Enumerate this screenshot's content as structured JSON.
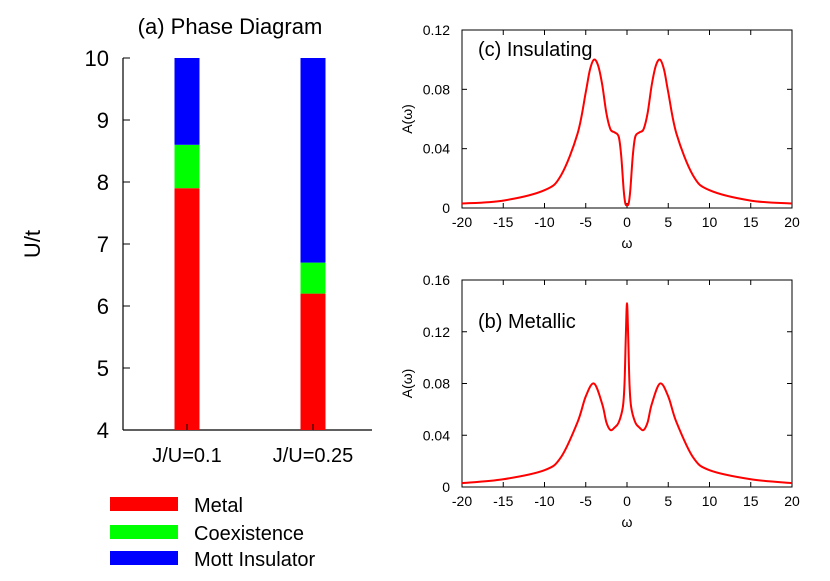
{
  "chart_data": [
    {
      "type": "bar",
      "title": "(a) Phase Diagram",
      "ylabel": "U/t",
      "ylim": [
        4,
        10
      ],
      "yticks": [
        "4",
        "5",
        "6",
        "7",
        "8",
        "9",
        "10"
      ],
      "categories": [
        "J/U=0.1",
        "J/U=0.25"
      ],
      "stacked_ranges": [
        {
          "name": "Metal",
          "color": "#ff0000",
          "ranges": [
            [
              4,
              7.9
            ],
            [
              4,
              6.2
            ]
          ]
        },
        {
          "name": "Coexistence",
          "color": "#00ff00",
          "ranges": [
            [
              7.9,
              8.6
            ],
            [
              6.2,
              6.7
            ]
          ]
        },
        {
          "name": "Mott Insulator",
          "color": "#0000ff",
          "ranges": [
            [
              8.6,
              10
            ],
            [
              6.7,
              10
            ]
          ]
        }
      ],
      "legend": {
        "placement": "bottom-left",
        "entries": [
          "Metal",
          "Coexistence",
          "Mott Insulator"
        ]
      }
    },
    {
      "type": "line",
      "title": "(c) Insulating",
      "xlabel": "ω",
      "ylabel": "A(ω)",
      "xlim": [
        -20,
        20
      ],
      "ylim": [
        0,
        0.12
      ],
      "xticks": [
        "-20",
        "-15",
        "-10",
        "-5",
        "0",
        "5",
        "10",
        "15",
        "20"
      ],
      "yticks": [
        "0",
        "0.04",
        "0.08",
        "0.12"
      ],
      "color": "#ff0000",
      "x": [
        -20,
        -15,
        -10,
        -8,
        -6,
        -5,
        -4.5,
        -4,
        -3.5,
        -3,
        -2.5,
        -2,
        -1.5,
        -1,
        -0.7,
        -0.4,
        -0.2,
        0,
        0.2,
        0.4,
        0.7,
        1,
        1.5,
        2,
        2.5,
        3,
        3.5,
        4,
        4.5,
        5,
        6,
        8,
        10,
        15,
        20
      ],
      "y": [
        0.003,
        0.005,
        0.012,
        0.022,
        0.05,
        0.078,
        0.093,
        0.1,
        0.096,
        0.083,
        0.064,
        0.053,
        0.051,
        0.048,
        0.035,
        0.012,
        0.003,
        0.002,
        0.003,
        0.012,
        0.035,
        0.048,
        0.051,
        0.053,
        0.064,
        0.083,
        0.096,
        0.1,
        0.093,
        0.078,
        0.05,
        0.022,
        0.012,
        0.005,
        0.003
      ]
    },
    {
      "type": "line",
      "title": "(b) Metallic",
      "xlabel": "ω",
      "ylabel": "A(ω)",
      "xlim": [
        -20,
        20
      ],
      "ylim": [
        0,
        0.16
      ],
      "xticks": [
        "-20",
        "-15",
        "-10",
        "-5",
        "0",
        "5",
        "10",
        "15",
        "20"
      ],
      "yticks": [
        "0",
        "0.04",
        "0.08",
        "0.12",
        "0.16"
      ],
      "color": "#ff0000",
      "x": [
        -20,
        -15,
        -10,
        -8,
        -6,
        -5,
        -4,
        -3,
        -2.5,
        -2,
        -1.5,
        -1,
        -0.5,
        -0.3,
        -0.15,
        0,
        0.15,
        0.3,
        0.5,
        1,
        1.5,
        2,
        2.5,
        3,
        4,
        5,
        6,
        8,
        10,
        15,
        20
      ],
      "y": [
        0.003,
        0.006,
        0.013,
        0.023,
        0.05,
        0.07,
        0.08,
        0.064,
        0.05,
        0.044,
        0.046,
        0.05,
        0.062,
        0.08,
        0.115,
        0.142,
        0.115,
        0.08,
        0.062,
        0.05,
        0.046,
        0.044,
        0.05,
        0.064,
        0.08,
        0.07,
        0.05,
        0.023,
        0.013,
        0.006,
        0.003
      ]
    }
  ]
}
